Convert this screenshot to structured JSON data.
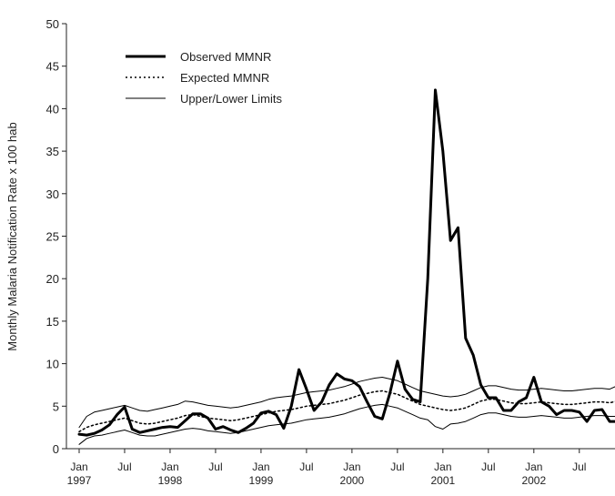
{
  "chart_data": {
    "type": "line",
    "y_label": "Monthly Malaria Notification Rate x 100 hab",
    "categories": [
      "Jan\n1997",
      null,
      null,
      null,
      null,
      null,
      "Jul",
      null,
      null,
      null,
      null,
      null,
      "Jan\n1998",
      null,
      null,
      null,
      null,
      null,
      "Jul",
      null,
      null,
      null,
      null,
      null,
      "Jan\n1999",
      null,
      null,
      null,
      null,
      null,
      "Jul",
      null,
      null,
      null,
      null,
      null,
      "Jan\n2000",
      null,
      null,
      null,
      null,
      null,
      "Jul",
      null,
      null,
      null,
      null,
      null,
      "Jan\n2001",
      null,
      null,
      null,
      null,
      null,
      "Jul",
      null,
      null,
      null,
      null,
      null,
      "Jan\n2002",
      null,
      null,
      null,
      null,
      null,
      "Jul",
      null,
      null,
      null,
      null,
      null
    ],
    "ylim": [
      0,
      50
    ],
    "yticks": [
      0,
      5,
      10,
      15,
      20,
      25,
      30,
      35,
      40,
      45,
      50
    ],
    "grid": false,
    "legend": "upper-left",
    "series": [
      {
        "name": "Observed MMNR",
        "color": "#000000",
        "line_width": 3,
        "dash": "none",
        "values": [
          1.7,
          1.6,
          1.8,
          2.2,
          2.8,
          4.0,
          4.9,
          2.3,
          1.9,
          2.1,
          2.3,
          2.5,
          2.6,
          2.5,
          3.3,
          4.1,
          4.1,
          3.6,
          2.3,
          2.6,
          2.2,
          1.9,
          2.4,
          3.0,
          4.2,
          4.4,
          4.0,
          2.4,
          5.0,
          9.3,
          7.0,
          4.5,
          5.5,
          7.5,
          8.8,
          8.2,
          8.0,
          7.3,
          5.5,
          3.8,
          3.5,
          6.5,
          10.3,
          7.0,
          5.8,
          5.5,
          20,
          42.2,
          35,
          24.5,
          26,
          13,
          11,
          7.5,
          6.0,
          6.0,
          4.5,
          4.5,
          5.5,
          6.0,
          8.4,
          5.5,
          5.0,
          4.0,
          4.5,
          4.5,
          4.3,
          3.2,
          4.5,
          4.6,
          3.2,
          3.2
        ]
      },
      {
        "name": "Expected MMNR",
        "color": "#000000",
        "line_width": 1.5,
        "dash": "2,3",
        "values": [
          2.0,
          2.5,
          2.8,
          3.0,
          3.2,
          3.4,
          3.6,
          3.3,
          3.0,
          2.9,
          3.0,
          3.2,
          3.4,
          3.6,
          3.9,
          4.0,
          3.8,
          3.6,
          3.5,
          3.4,
          3.3,
          3.4,
          3.6,
          3.8,
          4.0,
          4.2,
          4.4,
          4.5,
          4.6,
          4.8,
          5.0,
          5.1,
          5.2,
          5.3,
          5.5,
          5.7,
          6.0,
          6.3,
          6.5,
          6.7,
          6.8,
          6.6,
          6.4,
          6.0,
          5.6,
          5.2,
          5.0,
          4.8,
          4.6,
          4.5,
          4.6,
          4.8,
          5.2,
          5.6,
          5.8,
          5.8,
          5.6,
          5.4,
          5.3,
          5.3,
          5.4,
          5.5,
          5.4,
          5.3,
          5.2,
          5.2,
          5.3,
          5.4,
          5.5,
          5.5,
          5.4,
          5.6
        ]
      },
      {
        "name": "Upper/Lower Limits",
        "color": "#000000",
        "line_width": 1,
        "dash": "none",
        "values": [
          2.5,
          3.8,
          4.3,
          4.5,
          4.7,
          4.9,
          5.1,
          4.8,
          4.5,
          4.4,
          4.6,
          4.8,
          5.0,
          5.2,
          5.6,
          5.5,
          5.3,
          5.1,
          5.0,
          4.9,
          4.8,
          4.9,
          5.1,
          5.3,
          5.5,
          5.8,
          6.0,
          6.1,
          6.2,
          6.4,
          6.6,
          6.7,
          6.8,
          6.9,
          7.1,
          7.3,
          7.6,
          7.9,
          8.1,
          8.3,
          8.4,
          8.2,
          8.0,
          7.6,
          7.2,
          6.8,
          6.6,
          6.4,
          6.2,
          6.1,
          6.2,
          6.4,
          6.8,
          7.2,
          7.4,
          7.4,
          7.2,
          7.0,
          6.9,
          6.9,
          7.0,
          7.1,
          7.0,
          6.9,
          6.8,
          6.8,
          6.9,
          7.0,
          7.1,
          7.1,
          7.0,
          7.4
        ],
        "lower_values": [
          0.5,
          1.2,
          1.5,
          1.6,
          1.8,
          2.0,
          2.2,
          1.9,
          1.6,
          1.5,
          1.5,
          1.7,
          1.9,
          2.1,
          2.3,
          2.4,
          2.3,
          2.1,
          2.0,
          1.9,
          1.8,
          1.9,
          2.1,
          2.3,
          2.5,
          2.7,
          2.8,
          2.9,
          3.0,
          3.2,
          3.4,
          3.5,
          3.6,
          3.7,
          3.9,
          4.1,
          4.4,
          4.7,
          4.9,
          5.1,
          5.2,
          5.0,
          4.8,
          4.4,
          4.0,
          3.6,
          3.4,
          2.6,
          2.3,
          2.9,
          3.0,
          3.2,
          3.6,
          4.0,
          4.2,
          4.2,
          4.0,
          3.8,
          3.7,
          3.7,
          3.8,
          3.9,
          3.8,
          3.7,
          3.6,
          3.6,
          3.7,
          3.8,
          3.9,
          3.9,
          3.8,
          3.8
        ]
      }
    ]
  }
}
